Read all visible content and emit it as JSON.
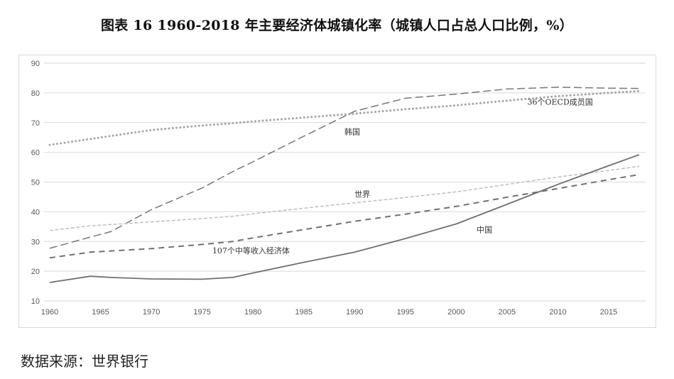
{
  "title": "图表 16 1960-2018 年主要经济体城镇化率（城镇人口占总人口比例，%）",
  "source": "数据来源：世界银行",
  "colors": {
    "korea": "#777777",
    "oecd": "#a6a6a6",
    "world": "#bfbfbf",
    "middle_income": "#707070",
    "china": "#6f6f6f",
    "grid": "#d9d9d9",
    "frame": "#d9d9d9"
  },
  "chart_data": {
    "type": "line",
    "title": "图表 16 1960-2018 年主要经济体城镇化率（城镇人口占总人口比例，%）",
    "xlabel": "",
    "ylabel": "",
    "ylim": [
      10,
      90
    ],
    "yticks": [
      10,
      20,
      30,
      40,
      50,
      60,
      70,
      80,
      90
    ],
    "xticks": [
      1960,
      1965,
      1970,
      1975,
      1980,
      1985,
      1990,
      1995,
      2000,
      2005,
      2010,
      2015
    ],
    "xlim": [
      1960,
      2018
    ],
    "grid": true,
    "legend": "inline labels",
    "x": [
      1960,
      1964,
      1966,
      1970,
      1975,
      1978,
      1980,
      1985,
      1990,
      1995,
      2000,
      2005,
      2010,
      2015,
      2018
    ],
    "series": [
      {
        "name": "韩国",
        "style": "long-dash",
        "values": [
          27.7,
          31.5,
          33.3,
          40.7,
          48.0,
          53.5,
          56.8,
          65.4,
          73.8,
          78.2,
          79.6,
          81.3,
          81.9,
          81.6,
          81.5
        ]
      },
      {
        "name": "36个OECD成员国",
        "style": "dotted",
        "values": [
          62.5,
          64.5,
          65.5,
          67.5,
          69.0,
          69.8,
          70.4,
          71.7,
          73.0,
          74.5,
          75.8,
          77.4,
          78.9,
          80.0,
          80.6
        ]
      },
      {
        "name": "世界",
        "style": "short-dash-light",
        "values": [
          33.7,
          35.3,
          35.7,
          36.6,
          37.7,
          38.5,
          39.3,
          41.2,
          43.0,
          44.8,
          46.7,
          49.2,
          51.7,
          53.9,
          55.3
        ]
      },
      {
        "name": "107个中等收入经济体",
        "style": "medium-dash",
        "values": [
          24.5,
          26.4,
          26.8,
          27.6,
          29.0,
          30.0,
          31.2,
          34.0,
          36.8,
          39.2,
          41.8,
          44.9,
          47.8,
          50.8,
          52.5
        ]
      },
      {
        "name": "中国",
        "style": "solid",
        "values": [
          16.2,
          18.3,
          17.9,
          17.4,
          17.3,
          17.9,
          19.4,
          23.0,
          26.4,
          31.0,
          35.9,
          42.5,
          49.2,
          55.5,
          59.2
        ]
      }
    ],
    "annotations": [
      {
        "text": "韩国",
        "x": 1989,
        "y": 66
      },
      {
        "text": "36个OECD成员国",
        "x": 2007,
        "y": 76
      },
      {
        "text": "世界",
        "x": 1990,
        "y": 45
      },
      {
        "text": "107个中等收入经济体",
        "x": 1976,
        "y": 26
      },
      {
        "text": "中国",
        "x": 2002,
        "y": 33
      }
    ]
  }
}
